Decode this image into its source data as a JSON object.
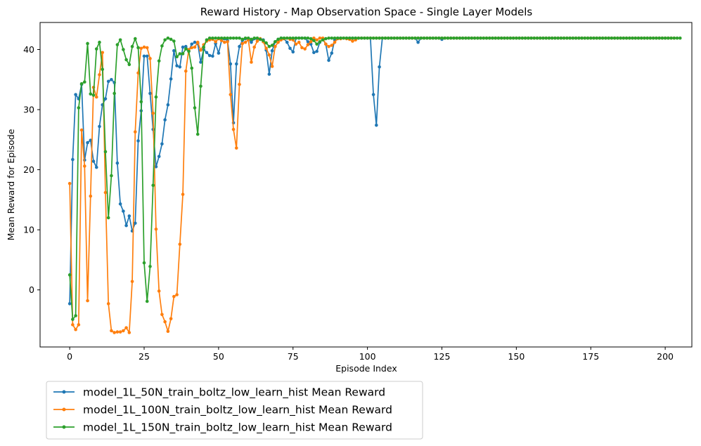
{
  "chart_data": {
    "type": "line",
    "title": "Reward History - Map Observation Space - Single Layer Models",
    "xlabel": "Episode Index",
    "ylabel": "Mean Reward for Episode",
    "xlim": [
      -9.95,
      208.95
    ],
    "ylim": [
      -9.5,
      44.5
    ],
    "xticks": [
      0,
      25,
      50,
      75,
      100,
      125,
      150,
      175,
      200
    ],
    "yticks": [
      0,
      10,
      20,
      30,
      40
    ],
    "grid": false,
    "legend_position": "below-left",
    "markers": "dot",
    "series": [
      {
        "name": "model_1L_50N_train_boltz_low_learn_hist Mean Reward",
        "color": "#1f77b4",
        "values": [
          -2.3,
          21.7,
          32.5,
          31.8,
          34.2,
          21.6,
          24.5,
          24.9,
          21.4,
          20.4,
          27.2,
          30.8,
          31.8,
          34.7,
          35.0,
          34.5,
          21.1,
          14.3,
          13.1,
          10.7,
          12.3,
          9.8,
          11.1,
          24.8,
          29.8,
          38.9,
          38.9,
          32.7,
          26.7,
          20.5,
          22.2,
          24.3,
          28.3,
          30.8,
          35.1,
          39.8,
          37.3,
          37.1,
          40.4,
          40.5,
          39.8,
          40.9,
          41.2,
          41.0,
          37.9,
          40.0,
          39.5,
          39.0,
          38.9,
          41.0,
          39.4,
          41.5,
          41.8,
          41.5,
          37.6,
          27.8,
          37.6,
          40.5,
          41.5,
          41.8,
          41.7,
          41.2,
          41.8,
          41.8,
          41.7,
          41.6,
          39.9,
          35.9,
          39.8,
          41.3,
          41.7,
          41.9,
          41.8,
          41.2,
          40.2,
          39.6,
          41.9,
          41.9,
          41.9,
          41.9,
          41.3,
          40.9,
          39.5,
          39.7,
          41.2,
          41.7,
          40.9,
          38.2,
          39.4,
          41.6,
          41.9,
          41.9,
          41.9,
          41.9,
          41.9,
          41.9,
          41.9,
          41.9,
          41.9,
          41.9,
          41.9,
          41.9,
          32.5,
          27.4,
          37.1,
          41.9,
          41.9,
          41.9,
          41.9,
          41.9,
          41.9,
          41.9,
          41.9,
          41.9,
          41.9,
          41.9,
          41.9,
          41.2,
          41.9,
          41.9,
          41.9,
          41.9,
          41.9,
          41.9,
          41.9,
          41.7,
          41.9,
          41.9,
          41.9,
          41.9,
          41.9,
          41.9,
          41.9,
          41.9,
          41.9,
          41.9,
          41.9,
          41.9,
          41.9,
          41.9,
          41.9,
          41.9,
          41.9,
          41.9,
          41.9,
          41.9,
          41.9,
          41.9,
          41.9,
          41.9,
          41.9,
          41.9,
          41.9,
          41.9,
          41.9,
          41.9,
          41.9,
          41.9,
          41.9,
          41.9,
          41.9,
          41.9,
          41.9,
          41.9,
          41.9,
          41.9,
          41.9,
          41.9,
          41.9,
          41.9,
          41.9,
          41.9,
          41.9,
          41.9,
          41.9,
          41.9,
          41.9,
          41.9,
          41.9,
          41.9,
          41.9,
          41.9,
          41.9,
          41.9,
          41.9,
          41.9,
          41.9,
          41.9,
          41.9,
          41.9,
          41.9,
          41.9,
          41.9,
          41.9,
          41.9,
          41.9,
          41.9,
          41.9,
          41.9,
          41.9,
          41.9,
          41.9
        ]
      },
      {
        "name": "model_1L_100N_train_boltz_low_learn_hist Mean Reward",
        "color": "#ff7f0e",
        "values": [
          17.7,
          -5.8,
          -6.6,
          -5.8,
          26.6,
          20.6,
          -1.8,
          15.6,
          33.7,
          32.1,
          35.8,
          39.5,
          16.2,
          -2.3,
          -6.8,
          -7.1,
          -7.0,
          -7.0,
          -6.8,
          -6.3,
          -7.1,
          1.4,
          26.3,
          36.1,
          40.2,
          40.4,
          40.3,
          38.5,
          29.4,
          10.1,
          -0.2,
          -4.1,
          -5.3,
          -6.9,
          -4.8,
          -1.1,
          -0.8,
          7.6,
          15.9,
          36.4,
          40.0,
          40.3,
          40.4,
          41.2,
          39.9,
          40.8,
          41.4,
          41.6,
          41.7,
          41.3,
          41.8,
          41.5,
          41.2,
          41.3,
          32.5,
          26.7,
          23.6,
          34.2,
          41.0,
          41.2,
          41.6,
          37.9,
          40.4,
          41.4,
          41.8,
          41.3,
          40.2,
          39.1,
          37.2,
          40.5,
          41.2,
          41.6,
          41.8,
          41.9,
          41.7,
          41.6,
          40.9,
          41.2,
          40.3,
          40.1,
          40.8,
          41.3,
          41.9,
          41.6,
          41.9,
          41.9,
          40.9,
          40.5,
          40.7,
          41.2,
          41.8,
          41.8,
          41.9,
          41.8,
          41.7,
          41.4,
          41.6,
          41.9,
          41.9,
          41.9,
          41.9,
          41.9,
          41.9,
          41.9,
          41.9,
          41.9,
          41.9,
          41.9,
          41.9,
          41.9,
          41.9,
          41.9,
          41.9,
          41.9,
          41.9,
          41.9,
          41.9,
          41.9,
          41.9,
          41.9,
          41.9,
          41.9,
          41.9,
          41.9,
          41.9,
          41.9,
          41.9,
          41.9,
          41.9,
          41.9,
          41.9,
          41.9,
          41.9,
          41.9,
          41.9,
          41.9,
          41.9,
          41.9,
          41.9,
          41.9,
          41.9,
          41.9,
          41.9,
          41.9,
          41.9,
          41.9,
          41.9,
          41.9,
          41.9,
          41.9,
          41.9,
          41.9,
          41.9,
          41.9,
          41.9,
          41.9,
          41.9,
          41.9,
          41.9,
          41.9,
          41.9,
          41.9,
          41.9,
          41.9,
          41.9,
          41.9,
          41.9,
          41.9,
          41.9,
          41.9,
          41.9,
          41.9,
          41.9,
          41.9,
          41.9,
          41.9,
          41.9,
          41.9,
          41.9,
          41.9,
          41.9,
          41.9,
          41.9,
          41.9,
          41.9,
          41.9,
          41.9,
          41.9,
          41.9,
          41.9,
          41.9,
          41.9,
          41.9,
          41.9,
          41.9,
          41.9,
          41.9,
          41.9,
          41.9,
          41.9,
          41.9,
          41.9,
          41.9,
          41.9
        ]
      },
      {
        "name": "model_1L_150N_train_boltz_low_learn_hist Mean Reward",
        "color": "#2ca02c",
        "values": [
          2.5,
          -4.9,
          -4.3,
          30.3,
          34.3,
          34.6,
          41.0,
          32.6,
          32.4,
          40.1,
          41.2,
          36.7,
          23.0,
          12.0,
          19.0,
          32.7,
          40.8,
          41.6,
          40.0,
          38.3,
          37.5,
          40.5,
          41.8,
          40.3,
          31.3,
          4.5,
          -1.9,
          3.9,
          17.4,
          32.1,
          38.1,
          40.6,
          41.6,
          41.9,
          41.7,
          41.4,
          38.8,
          39.3,
          39.3,
          40.1,
          39.7,
          36.9,
          30.3,
          25.9,
          33.9,
          40.4,
          41.6,
          41.9,
          41.9,
          41.9,
          41.9,
          41.9,
          41.9,
          41.9,
          41.9,
          41.9,
          41.9,
          41.9,
          41.7,
          41.9,
          41.9,
          41.7,
          41.9,
          41.9,
          41.7,
          41.5,
          41.1,
          40.5,
          40.7,
          41.3,
          41.7,
          41.9,
          41.9,
          41.9,
          41.9,
          41.9,
          41.9,
          41.9,
          41.9,
          41.9,
          41.9,
          41.8,
          41.5,
          40.9,
          41.3,
          41.6,
          41.8,
          41.9,
          41.9,
          41.9,
          41.9,
          41.9,
          41.9,
          41.9,
          41.9,
          41.9,
          41.9,
          41.9,
          41.9,
          41.9,
          41.9,
          41.9,
          41.9,
          41.9,
          41.9,
          41.9,
          41.9,
          41.9,
          41.9,
          41.9,
          41.9,
          41.9,
          41.9,
          41.9,
          41.9,
          41.9,
          41.9,
          41.9,
          41.9,
          41.9,
          41.9,
          41.9,
          41.9,
          41.9,
          41.9,
          41.9,
          41.9,
          41.9,
          41.9,
          41.9,
          41.9,
          41.9,
          41.9,
          41.9,
          41.9,
          41.9,
          41.9,
          41.9,
          41.9,
          41.9,
          41.9,
          41.9,
          41.9,
          41.9,
          41.9,
          41.9,
          41.9,
          41.9,
          41.9,
          41.9,
          41.9,
          41.9,
          41.9,
          41.9,
          41.9,
          41.9,
          41.9,
          41.9,
          41.9,
          41.9,
          41.9,
          41.9,
          41.9,
          41.9,
          41.9,
          41.9,
          41.9,
          41.9,
          41.9,
          41.9,
          41.9,
          41.9,
          41.9,
          41.9,
          41.9,
          41.9,
          41.9,
          41.9,
          41.9,
          41.9,
          41.9,
          41.9,
          41.9,
          41.9,
          41.9,
          41.9,
          41.9,
          41.9,
          41.9,
          41.9,
          41.9,
          41.9,
          41.9,
          41.9,
          41.9,
          41.9,
          41.9,
          41.9,
          41.9,
          41.9,
          41.9,
          41.9,
          41.9,
          41.9,
          41.9,
          41.9
        ]
      }
    ]
  }
}
